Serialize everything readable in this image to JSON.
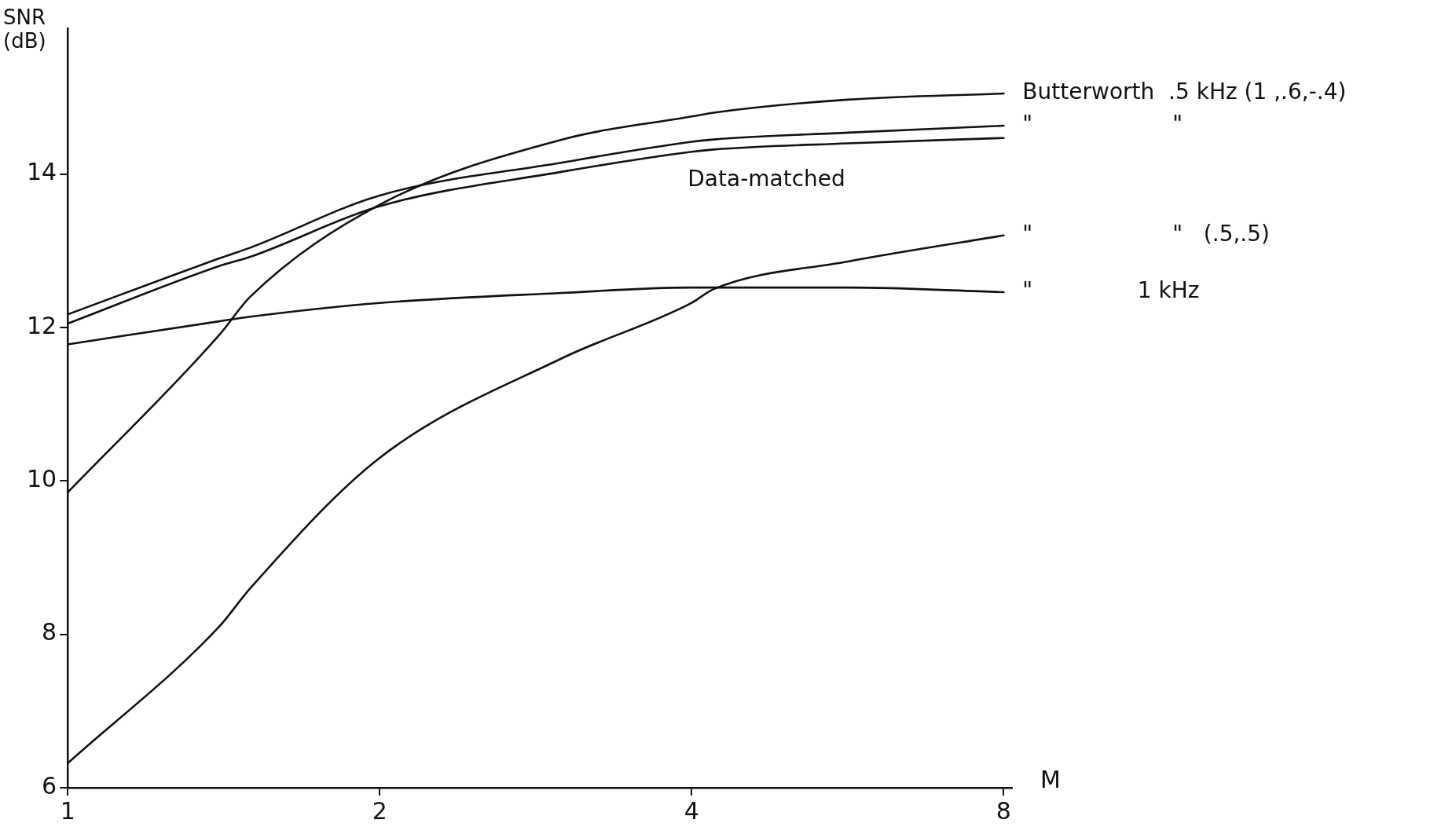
{
  "chart_data": {
    "type": "line",
    "ylabel": "SNR (dB)",
    "xlabel": "M",
    "log": "x",
    "x": [
      1,
      1.4,
      1.5,
      2,
      3,
      4,
      4.2,
      5.66,
      8
    ],
    "xlim": [
      1,
      8.15
    ],
    "xticks": [
      1,
      2,
      4,
      8
    ],
    "ylim": [
      6,
      15.9
    ],
    "yticks": [
      6,
      8,
      10,
      12,
      14
    ],
    "grid": false,
    "legend": false,
    "marker": "none",
    "line_style": "solid",
    "series": [
      {
        "name": "Butterworth  .5 kHz (1 ,.6,-.4)",
        "color": "#111111",
        "values": [
          9.85,
          11.9,
          12.4,
          13.6,
          14.45,
          14.75,
          14.8,
          14.97,
          15.05
        ]
      },
      {
        "name": "\"                    \"",
        "color": "#111111",
        "values": [
          12.17,
          12.9,
          13.04,
          13.72,
          14.15,
          14.42,
          14.45,
          14.54,
          14.63
        ]
      },
      {
        "color": "#111111",
        "values": [
          12.05,
          12.8,
          12.92,
          13.58,
          14.03,
          14.29,
          14.32,
          14.4,
          14.47
        ]
      },
      {
        "name": "\"                    \"   (.5,.5)",
        "color": "#111111",
        "values": [
          6.32,
          8.1,
          8.6,
          10.3,
          11.6,
          12.32,
          12.5,
          12.86,
          13.2
        ]
      },
      {
        "name": "\"               1 kHz",
        "color": "#111111",
        "values": [
          11.78,
          12.08,
          12.14,
          12.32,
          12.45,
          12.52,
          12.52,
          12.52,
          12.46
        ]
      }
    ],
    "annotations": [
      "Data-matched"
    ]
  }
}
